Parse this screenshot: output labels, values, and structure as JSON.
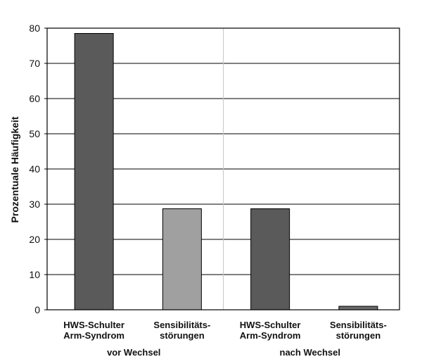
{
  "chart_data": {
    "type": "bar",
    "ylabel": "Prozentuale Häufigkeit",
    "ylim": [
      0,
      80
    ],
    "yticks": [
      0,
      10,
      20,
      30,
      40,
      50,
      60,
      70,
      80
    ],
    "grid": true,
    "groups": [
      {
        "label": "vor Wechsel",
        "bars": [
          {
            "category": "HWS-Schulter\nArm-Syndrom",
            "value": 78.5,
            "color": "#5a5a5a"
          },
          {
            "category": "Sensibilitäts-\nstörungen",
            "value": 28.7,
            "color": "#a0a0a0"
          }
        ]
      },
      {
        "label": "nach Wechsel",
        "bars": [
          {
            "category": "HWS-Schulter\nArm-Syndrom",
            "value": 28.7,
            "color": "#5a5a5a"
          },
          {
            "category": "Sensibilitäts-\nstörungen",
            "value": 1.0,
            "color": "#6a6a6a"
          }
        ]
      }
    ]
  }
}
